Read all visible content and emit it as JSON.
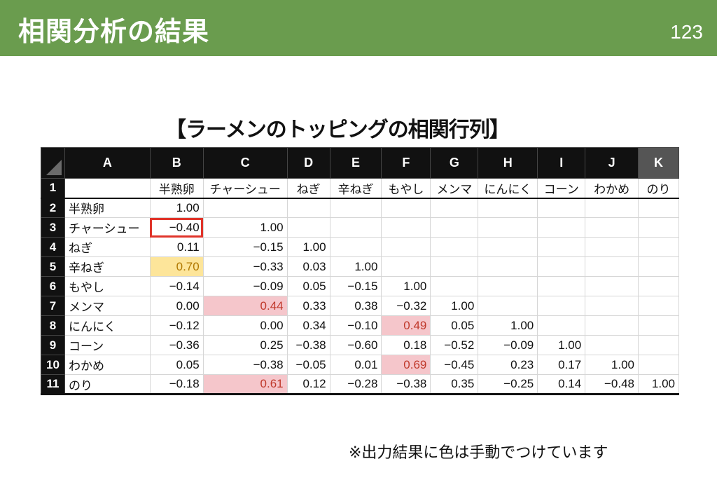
{
  "slide": {
    "title": "相関分析の結果",
    "page_number": "123",
    "matrix_title": "【ラーメンのトッピングの相関行列】",
    "footnote": "※出力結果に色は手動でつけています"
  },
  "spreadsheet": {
    "column_headers": [
      "A",
      "B",
      "C",
      "D",
      "E",
      "F",
      "G",
      "H",
      "I",
      "J",
      "K"
    ],
    "active_column": "K",
    "row_numbers": [
      "1",
      "2",
      "3",
      "4",
      "5",
      "6",
      "7",
      "8",
      "9",
      "10",
      "11"
    ],
    "variables": [
      "半熟卵",
      "チャーシュー",
      "ねぎ",
      "辛ねぎ",
      "もやし",
      "メンマ",
      "にんにく",
      "コーン",
      "わかめ",
      "のり"
    ],
    "matrix": [
      [
        "1.00"
      ],
      [
        "−0.40",
        "1.00"
      ],
      [
        "0.11",
        "−0.15",
        "1.00"
      ],
      [
        "0.70",
        "−0.33",
        "0.03",
        "1.00"
      ],
      [
        "−0.14",
        "−0.09",
        "0.05",
        "−0.15",
        "1.00"
      ],
      [
        "0.00",
        "0.44",
        "0.33",
        "0.38",
        "−0.32",
        "1.00"
      ],
      [
        "−0.12",
        "0.00",
        "0.34",
        "−0.10",
        "0.49",
        "0.05",
        "1.00"
      ],
      [
        "−0.36",
        "0.25",
        "−0.38",
        "−0.60",
        "0.18",
        "−0.52",
        "−0.09",
        "1.00"
      ],
      [
        "0.05",
        "−0.38",
        "−0.05",
        "0.01",
        "0.69",
        "−0.45",
        "0.23",
        "0.17",
        "1.00"
      ],
      [
        "−0.18",
        "0.61",
        "0.12",
        "−0.28",
        "−0.38",
        "0.35",
        "−0.25",
        "0.14",
        "−0.48",
        "1.00"
      ]
    ],
    "highlights": {
      "yellow": [
        [
          3,
          0
        ]
      ],
      "pink": [
        [
          5,
          1
        ],
        [
          6,
          4
        ],
        [
          8,
          4
        ],
        [
          9,
          1
        ]
      ],
      "red_box": [
        [
          1,
          0
        ]
      ]
    },
    "colors": {
      "header_bar": "#6a9c4e",
      "yellow_fill": "#fde59a",
      "pink_fill": "#f5c6cb",
      "red_box": "#e0342a"
    }
  }
}
